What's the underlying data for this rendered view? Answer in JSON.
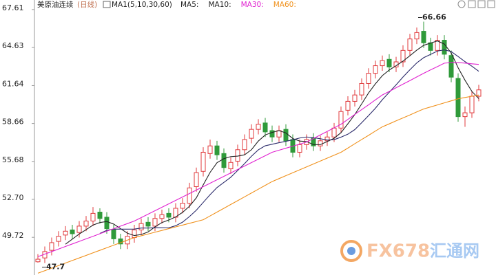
{
  "chart_data": {
    "type": "candlestick",
    "title": "美原油连续",
    "period": "(日线)",
    "indicator": "MA1(5,10,30,60)",
    "up_color": "#e0383b",
    "down_color": "#2f9a3a",
    "open": [
      47.8,
      48.1,
      48.7,
      49.4,
      49.9,
      50.3,
      50.1,
      50.6,
      51.0,
      51.7,
      51.3,
      50.3,
      49.6,
      49.2,
      49.7,
      50.3,
      50.9,
      50.6,
      51.2,
      51.6,
      51.3,
      52.0,
      52.4,
      53.7,
      54.9,
      56.3,
      56.9,
      56.3,
      55.1,
      55.7,
      56.6,
      57.5,
      58.2,
      58.7,
      58.1,
      57.6,
      58.2,
      57.4,
      56.4,
      57.0,
      57.5,
      56.9,
      57.3,
      57.6,
      58.3,
      59.7,
      60.4,
      60.9,
      61.8,
      62.6,
      63.2,
      63.7,
      63.1,
      63.5,
      64.4,
      65.3,
      65.9,
      65.0,
      64.4,
      65.2,
      64.0,
      62.2,
      59.2,
      59.5,
      60.8
    ],
    "high": [
      48.4,
      49.0,
      49.7,
      50.2,
      50.6,
      50.7,
      51.0,
      51.4,
      52.1,
      52.0,
      51.7,
      50.7,
      50.0,
      50.2,
      50.7,
      51.2,
      51.3,
      51.6,
      51.9,
      52.0,
      52.4,
      52.8,
      54.0,
      55.2,
      56.8,
      57.4,
      57.3,
      56.7,
      56.0,
      57.0,
      57.8,
      58.6,
      59.0,
      59.1,
      58.5,
      58.5,
      58.6,
      57.8,
      57.4,
      57.8,
      57.9,
      57.7,
      58.0,
      58.7,
      60.0,
      60.8,
      61.3,
      62.2,
      63.0,
      63.6,
      64.0,
      64.1,
      63.9,
      64.8,
      65.7,
      66.2,
      66.66,
      65.4,
      65.6,
      65.6,
      64.4,
      62.6,
      60.0,
      61.2,
      61.7
    ],
    "low": [
      47.73,
      47.7,
      48.3,
      49.0,
      49.5,
      49.6,
      49.7,
      50.2,
      50.6,
      50.8,
      50.0,
      49.2,
      48.8,
      48.8,
      49.3,
      49.9,
      50.2,
      50.2,
      50.8,
      50.9,
      50.9,
      51.6,
      52.0,
      53.3,
      54.5,
      55.9,
      55.8,
      54.8,
      54.7,
      55.3,
      56.2,
      57.1,
      57.8,
      57.6,
      57.2,
      57.2,
      56.9,
      56.0,
      56.0,
      56.6,
      56.5,
      56.5,
      56.9,
      57.2,
      57.9,
      59.3,
      60.0,
      60.5,
      61.4,
      62.2,
      62.8,
      62.7,
      62.7,
      63.1,
      64.0,
      64.9,
      64.6,
      64.0,
      64.0,
      63.7,
      61.9,
      58.8,
      58.4,
      59.1,
      60.4
    ],
    "close": [
      48.0,
      48.6,
      49.3,
      49.8,
      50.2,
      50.0,
      50.6,
      51.0,
      51.6,
      51.2,
      50.4,
      49.6,
      49.2,
      49.8,
      50.3,
      50.8,
      50.6,
      51.2,
      51.5,
      51.3,
      52.0,
      52.4,
      53.6,
      54.8,
      56.4,
      56.9,
      56.2,
      55.2,
      55.6,
      56.6,
      57.4,
      58.2,
      58.6,
      58.0,
      57.6,
      58.1,
      57.3,
      56.4,
      57.0,
      57.4,
      56.9,
      57.3,
      57.6,
      58.3,
      59.6,
      60.4,
      60.9,
      61.8,
      62.6,
      63.2,
      63.6,
      63.1,
      63.5,
      64.4,
      65.3,
      65.8,
      65.0,
      64.4,
      65.2,
      64.1,
      62.3,
      59.2,
      59.5,
      60.8,
      61.3
    ],
    "series": [
      {
        "name": "MA5:",
        "color": "#222222",
        "values": [
          null,
          null,
          null,
          null,
          49.18,
          49.58,
          49.98,
          50.32,
          50.68,
          50.88,
          50.96,
          50.76,
          50.4,
          50.04,
          49.86,
          49.94,
          50.14,
          50.54,
          50.88,
          51.08,
          51.32,
          51.68,
          52.16,
          52.82,
          53.84,
          54.82,
          55.58,
          55.9,
          56.06,
          56.1,
          56.2,
          56.6,
          57.28,
          57.76,
          57.96,
          58.1,
          57.92,
          57.48,
          57.28,
          57.24,
          57.0,
          57.0,
          57.24,
          57.5,
          57.94,
          58.64,
          59.36,
          60.2,
          61.06,
          61.78,
          62.42,
          62.86,
          63.2,
          63.56,
          63.98,
          64.42,
          64.8,
          64.98,
          65.14,
          64.9,
          64.2,
          63.04,
          62.06,
          61.18,
          60.62
        ]
      },
      {
        "name": "MA10:",
        "color": "#2a2a6a",
        "values": [
          null,
          null,
          null,
          null,
          null,
          null,
          null,
          null,
          null,
          50.03,
          50.27,
          50.37,
          50.36,
          50.36,
          50.37,
          50.45,
          50.45,
          50.47,
          50.46,
          50.47,
          50.63,
          50.91,
          51.35,
          51.85,
          52.46,
          53.07,
          53.63,
          54.03,
          54.44,
          54.97,
          55.51,
          56.09,
          56.59,
          56.91,
          57.03,
          57.15,
          57.26,
          57.38,
          57.52,
          57.6,
          57.55,
          57.46,
          57.36,
          57.39,
          57.59,
          57.82,
          58.18,
          58.72,
          59.28,
          59.86,
          60.53,
          61.11,
          61.7,
          62.31,
          62.88,
          63.42,
          63.83,
          64.09,
          64.35,
          64.44,
          64.31,
          63.92,
          63.52,
          63.16,
          62.76
        ]
      },
      {
        "name": "MA30:",
        "color": "#e020d0",
        "values": [
          48.2,
          48.4,
          48.6,
          48.8,
          49.0,
          49.2,
          49.4,
          49.6,
          49.8,
          50.0,
          50.2,
          50.4,
          50.6,
          50.8,
          51.0,
          51.27,
          51.54,
          51.81,
          52.08,
          52.35,
          52.62,
          52.89,
          53.16,
          53.43,
          53.7,
          53.97,
          54.24,
          54.51,
          54.78,
          55.05,
          55.32,
          55.59,
          55.86,
          56.13,
          56.4,
          56.56,
          56.72,
          56.88,
          57.04,
          57.2,
          57.48,
          57.76,
          58.04,
          58.32,
          58.6,
          58.98,
          59.37,
          59.75,
          60.13,
          60.52,
          60.9,
          61.18,
          61.47,
          61.75,
          62.03,
          62.32,
          62.6,
          62.87,
          63.13,
          63.4,
          63.45,
          63.45,
          63.4,
          63.35,
          63.3
        ]
      },
      {
        "name": "MA60:",
        "color": "#f0901a",
        "values": [
          46.9,
          47.1,
          47.3,
          47.5,
          47.7,
          47.9,
          48.1,
          48.3,
          48.5,
          48.7,
          48.9,
          49.1,
          49.3,
          49.5,
          49.7,
          49.84,
          49.98,
          50.12,
          50.26,
          50.4,
          50.54,
          50.68,
          50.82,
          50.96,
          51.1,
          51.4,
          51.7,
          52.0,
          52.3,
          52.6,
          52.9,
          53.2,
          53.5,
          53.8,
          54.1,
          54.33,
          54.56,
          54.79,
          55.02,
          55.25,
          55.48,
          55.71,
          55.94,
          56.17,
          56.4,
          56.73,
          57.07,
          57.4,
          57.73,
          58.07,
          58.4,
          58.63,
          58.87,
          59.1,
          59.33,
          59.57,
          59.8,
          59.96,
          60.12,
          60.28,
          60.44,
          60.6,
          60.7,
          60.8,
          60.9
        ]
      }
    ],
    "ylim": [
      46.76,
      68.36
    ],
    "yticks": [
      67.61,
      64.63,
      61.64,
      58.66,
      55.68,
      {
        "value": 52.7,
        "label": "52.70"
      },
      49.72
    ],
    "grid": false
  },
  "watermark": {
    "brand": "FX678",
    "name": "汇通网"
  }
}
